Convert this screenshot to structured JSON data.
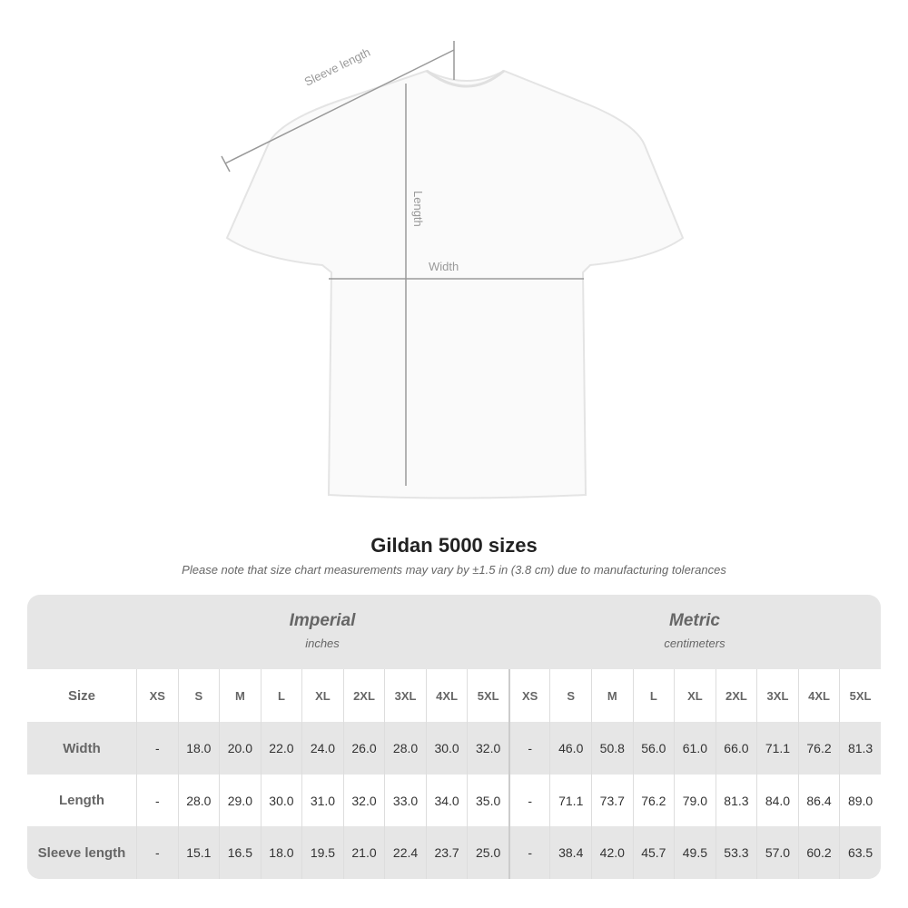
{
  "diagram": {
    "sleeve_label": "Sleeve length",
    "length_label": "Length",
    "width_label": "Width"
  },
  "title": "Gildan 5000 sizes",
  "note": "Please note that size chart measurements may vary by ±1.5 in (3.8 cm) due to manufacturing tolerances",
  "imperial": {
    "title": "Imperial",
    "unit": "inches"
  },
  "metric": {
    "title": "Metric",
    "unit": "centimeters"
  },
  "header_label": "Size",
  "sizes": [
    "XS",
    "S",
    "M",
    "L",
    "XL",
    "2XL",
    "3XL",
    "4XL",
    "5XL"
  ],
  "rows": [
    {
      "label": "Width",
      "imperial": [
        "-",
        "18.0",
        "20.0",
        "22.0",
        "24.0",
        "26.0",
        "28.0",
        "30.0",
        "32.0"
      ],
      "metric": [
        "-",
        "46.0",
        "50.8",
        "56.0",
        "61.0",
        "66.0",
        "71.1",
        "76.2",
        "81.3"
      ]
    },
    {
      "label": "Length",
      "imperial": [
        "-",
        "28.0",
        "29.0",
        "30.0",
        "31.0",
        "32.0",
        "33.0",
        "34.0",
        "35.0"
      ],
      "metric": [
        "-",
        "71.1",
        "73.7",
        "76.2",
        "79.0",
        "81.3",
        "84.0",
        "86.4",
        "89.0"
      ]
    },
    {
      "label": "Sleeve length",
      "imperial": [
        "-",
        "15.1",
        "16.5",
        "18.0",
        "19.5",
        "21.0",
        "22.4",
        "23.7",
        "25.0"
      ],
      "metric": [
        "-",
        "38.4",
        "42.0",
        "45.7",
        "49.5",
        "53.3",
        "57.0",
        "60.2",
        "63.5"
      ]
    }
  ]
}
